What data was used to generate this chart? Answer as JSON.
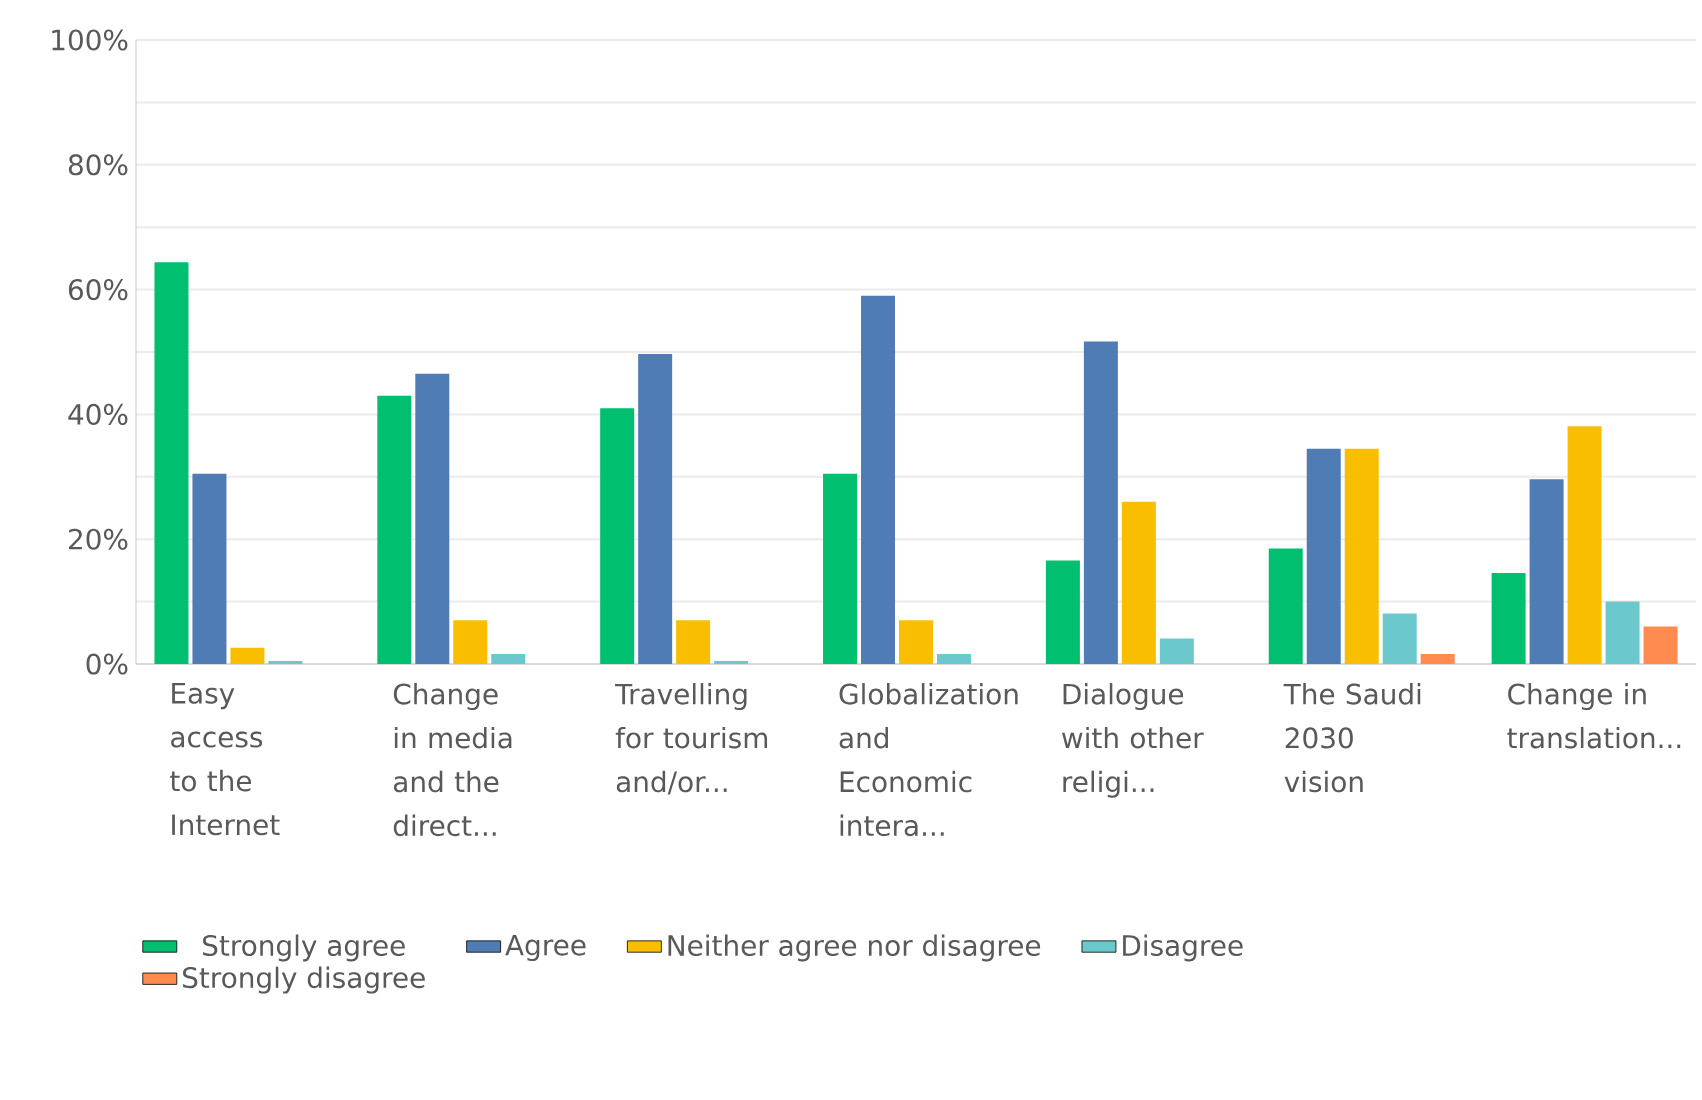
{
  "chart_data": {
    "type": "bar",
    "categories": [
      "Easy access to the Internet",
      "Change in media and the direct...",
      "Travelling for tourism and/or...",
      "Globalization and Economic intera...",
      "Dialogue with other religi...",
      "The Saudi 2030 vision",
      "Change in translation..."
    ],
    "series": [
      {
        "name": "Strongly agree",
        "color": "#00bf6f",
        "values": [
          64.4,
          43,
          41,
          30.5,
          16.6,
          18.5,
          14.6
        ]
      },
      {
        "name": "Agree",
        "color": "#507cb6",
        "values": [
          30.5,
          46.5,
          49.7,
          59,
          51.7,
          34.5,
          29.6
        ]
      },
      {
        "name": "Neither agree nor disagree",
        "color": "#f9be00",
        "values": [
          2.6,
          7,
          7,
          7,
          26,
          34.5,
          38.1
        ]
      },
      {
        "name": "Disagree",
        "color": "#6bc8cd",
        "values": [
          0.5,
          1.6,
          0.5,
          1.6,
          4.1,
          8.1,
          10
        ]
      },
      {
        "name": "Strongly disagree",
        "color": "#ff8b4f",
        "values": [
          0,
          0,
          0,
          0,
          0,
          1.6,
          6
        ]
      }
    ],
    "ylim": [
      0,
      100
    ],
    "yticks": [
      {
        "value": 0,
        "label": "0%"
      },
      {
        "value": 10,
        "label": null
      },
      {
        "value": 20,
        "label": "20%"
      },
      {
        "value": 30,
        "label": null
      },
      {
        "value": 40,
        "label": "40%"
      },
      {
        "value": 50,
        "label": null
      },
      {
        "value": 60,
        "label": "60%"
      },
      {
        "value": 70,
        "label": null
      },
      {
        "value": 80,
        "label": "80%"
      },
      {
        "value": 90,
        "label": null
      },
      {
        "value": 100,
        "label": "100%"
      }
    ],
    "grid": "y",
    "legend": "bottom"
  }
}
